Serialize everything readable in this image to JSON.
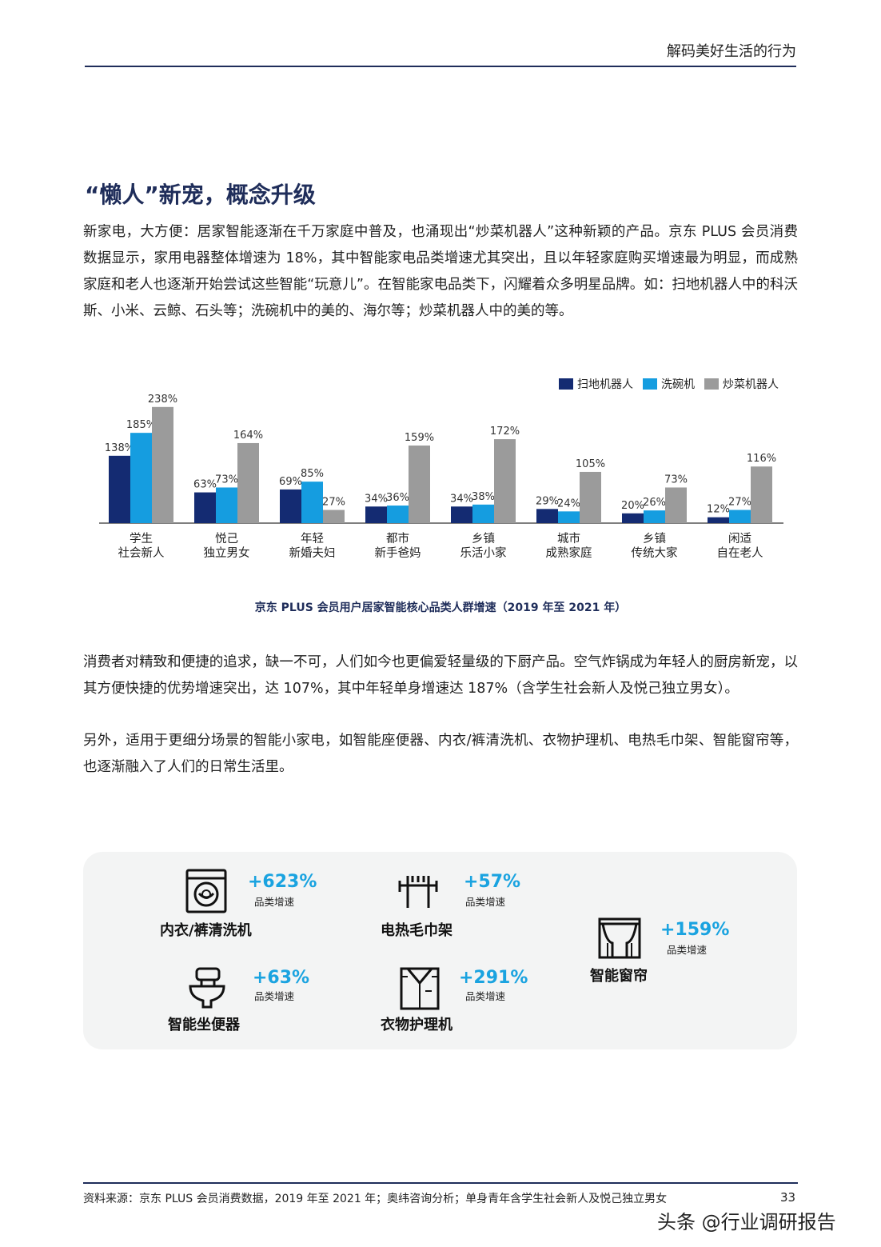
{
  "header": {
    "title": "解码美好生活的行为"
  },
  "section": {
    "title": "“懒人”新宠，概念升级"
  },
  "paragraphs": {
    "p1": "新家电，大方便：居家智能逐渐在千万家庭中普及，也涌现出“炒菜机器人”这种新颖的产品。京东 PLUS 会员消费数据显示，家用电器整体增速为 18%，其中智能家电品类增速尤其突出，且以年轻家庭购买增速最为明显，而成熟家庭和老人也逐渐开始尝试这些智能“玩意儿”。在智能家电品类下，闪耀着众多明星品牌。如：扫地机器人中的科沃斯、小米、云鲸、石头等；洗碗机中的美的、海尔等；炒菜机器人中的美的等。",
    "p2": "消费者对精致和便捷的追求，缺一不可，人们如今也更偏爱轻量级的下厨产品。空气炸锅成为年轻人的厨房新宠，以其方便快捷的优势增速突出，达 107%，其中年轻单身增速达 187%（含学生社会新人及悦己独立男女）。",
    "p3": "另外，适用于更细分场景的智能小家电，如智能座便器、内衣/裤清洗机、衣物护理机、电热毛巾架、智能窗帘等，也逐渐融入了人们的日常生活里。"
  },
  "chart_data": {
    "type": "bar",
    "title": "京东 PLUS 会员用户居家智能核心品类人群增速（2019 年至 2021 年）",
    "categories": [
      [
        "学生",
        "社会新人"
      ],
      [
        "悦己",
        "独立男女"
      ],
      [
        "年轻",
        "新婚夫妇"
      ],
      [
        "都市",
        "新手爸妈"
      ],
      [
        "乡镇",
        "乐活小家"
      ],
      [
        "城市",
        "成熟家庭"
      ],
      [
        "乡镇",
        "传统大家"
      ],
      [
        "闲适",
        "自在老人"
      ]
    ],
    "series": [
      {
        "name": "扫地机器人",
        "color": "#142b72",
        "values": [
          138,
          63,
          69,
          34,
          34,
          29,
          20,
          12
        ]
      },
      {
        "name": "洗碗机",
        "color": "#159de0",
        "values": [
          185,
          73,
          85,
          36,
          38,
          24,
          26,
          27
        ]
      },
      {
        "name": "炒菜机器人",
        "color": "#9b9b9b",
        "values": [
          238,
          164,
          27,
          159,
          172,
          105,
          73,
          116
        ]
      }
    ],
    "value_suffix": "%",
    "legend": "top-right",
    "ylim": [
      0,
      250
    ],
    "grid": false
  },
  "products": [
    {
      "name": "内衣/裤清洗机",
      "growth": "+623%",
      "sub": "品类增速",
      "icon": "washing-machine-icon"
    },
    {
      "name": "电热毛巾架",
      "growth": "+57%",
      "sub": "品类增速",
      "icon": "towel-rack-icon"
    },
    {
      "name": "智能窗帘",
      "growth": "+159%",
      "sub": "品类增速",
      "icon": "curtain-icon"
    },
    {
      "name": "智能坐便器",
      "growth": "+63%",
      "sub": "品类增速",
      "icon": "toilet-icon"
    },
    {
      "name": "衣物护理机",
      "growth": "+291%",
      "sub": "品类增速",
      "icon": "wardrobe-icon"
    }
  ],
  "footer": {
    "source": "资料来源：京东 PLUS 会员消费数据，2019 年至 2021 年；奥纬咨询分析；单身青年含学生社会新人及悦己独立男女",
    "page": "33",
    "watermark": "头条 @行业调研报告"
  }
}
